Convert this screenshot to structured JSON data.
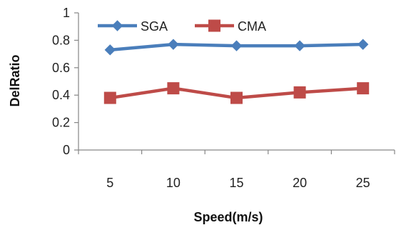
{
  "chart_data": {
    "type": "line",
    "x": [
      5,
      10,
      15,
      20,
      25
    ],
    "categories": [
      "5",
      "10",
      "15",
      "20",
      "25"
    ],
    "series": [
      {
        "name": "SGA",
        "values": [
          0.73,
          0.77,
          0.76,
          0.76,
          0.77
        ],
        "color": "#4A7EBB",
        "marker": "diamond"
      },
      {
        "name": "CMA",
        "values": [
          0.38,
          0.45,
          0.38,
          0.42,
          0.45
        ],
        "color": "#BE4B48",
        "marker": "square"
      }
    ],
    "title": "",
    "xlabel": "Speed(m/s)",
    "ylabel": "DelRatio",
    "ylim": [
      0,
      1
    ],
    "yticks": [
      "0",
      "0.2",
      "0.4",
      "0.6",
      "0.8",
      "1"
    ],
    "grid": false,
    "legend_position": "top-left"
  }
}
